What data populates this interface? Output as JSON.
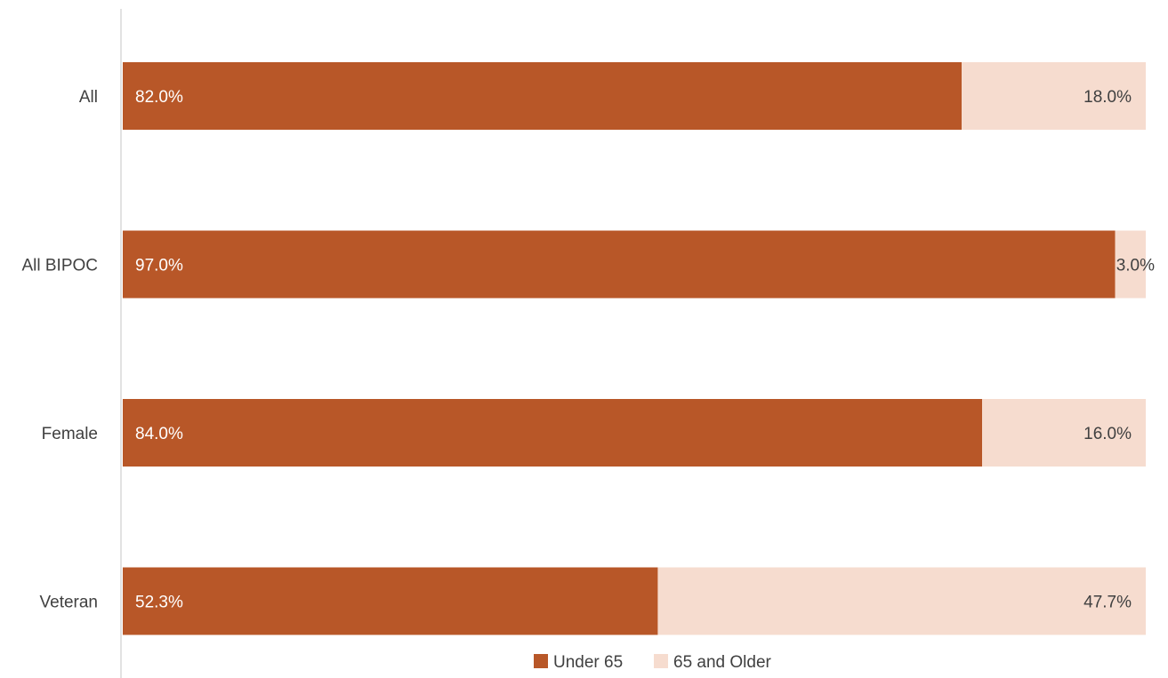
{
  "chart_data": {
    "type": "bar",
    "orientation": "horizontal",
    "stacked": true,
    "percent_stacked": true,
    "categories": [
      "All",
      "All BIPOC",
      "Female",
      "Veteran"
    ],
    "series": [
      {
        "name": "Under 65",
        "values": [
          82.0,
          97.0,
          84.0,
          52.3
        ],
        "labels": [
          "82.0%",
          "97.0%",
          "84.0%",
          "52.3%"
        ],
        "color": "#b85728",
        "label_color": "#ffffff"
      },
      {
        "name": "65 and Older",
        "values": [
          18.0,
          3.0,
          16.0,
          47.7
        ],
        "labels": [
          "18.0%",
          "3.0%",
          "16.0%",
          "47.7%"
        ],
        "color": "#f6dccf",
        "label_color": "#404040"
      }
    ],
    "xlim": [
      0,
      100
    ],
    "grid": false,
    "legend": "bottom-center",
    "axis_line_color": "#d9d9d9"
  }
}
